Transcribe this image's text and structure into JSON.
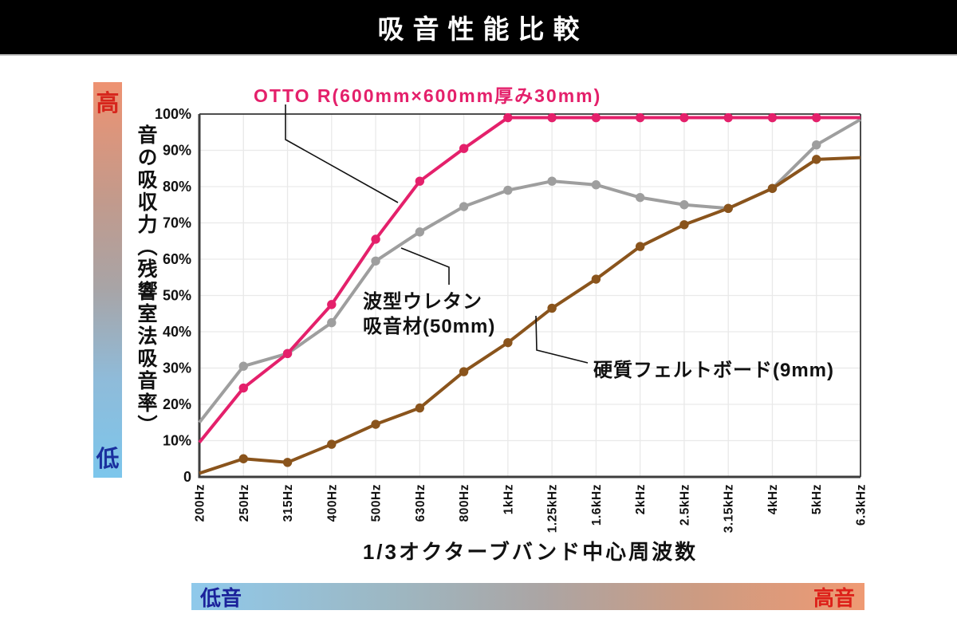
{
  "header": {
    "title": "吸音性能比較"
  },
  "left_scale": {
    "high_label": "高",
    "low_label": "低",
    "top_color": "#EE9271",
    "bottom_color": "#7CC6EC",
    "high_text_color": "#D6251C",
    "low_text_color": "#1A2F9E"
  },
  "bottom_scale": {
    "left_label": "低音",
    "right_label": "高音",
    "left_color": "#8FC9EB",
    "right_color": "#EF9A73",
    "left_text_color": "#1B229B",
    "right_text_color": "#DD2019"
  },
  "annotations": {
    "otto": {
      "label": "OTTO R(600mm×600mm厚み30mm)",
      "color": "#E4206B"
    },
    "urethane": {
      "line1": "波型ウレタン",
      "line2": "吸音材(50mm)",
      "color": "#111111"
    },
    "felt": {
      "label": "硬質フェルトボード(9mm)",
      "color": "#111111"
    }
  },
  "chart_data": {
    "type": "line",
    "title": "吸音性能比較",
    "xlabel": "1/3オクターブバンド中心周波数",
    "ylabel": "音の吸収力（残響室法吸音率）",
    "ylim": [
      0,
      100
    ],
    "grid": true,
    "legend_position": "inline-annotations",
    "y_tick_labels": [
      "100%",
      "90%",
      "80%",
      "70%",
      "60%",
      "50%",
      "40%",
      "30%",
      "20%",
      "10%",
      "0"
    ],
    "categories": [
      "200Hz",
      "250Hz",
      "315Hz",
      "400Hz",
      "500Hz",
      "630Hz",
      "800Hz",
      "1kHz",
      "1.25kHz",
      "1.6kHz",
      "2kHz",
      "2.5kHz",
      "3.15kHz",
      "4kHz",
      "5kHz",
      "6.3kHz"
    ],
    "series": [
      {
        "name": "OTTO R(600mm×600mm厚み30mm)",
        "color": "#E4206B",
        "values": [
          9.5,
          24.5,
          34,
          47.5,
          65.5,
          81.5,
          90.5,
          99,
          99,
          99,
          99,
          99,
          99,
          99,
          99,
          99
        ]
      },
      {
        "name": "波型ウレタン吸音材(50mm)",
        "color": "#9E9E9E",
        "values": [
          15,
          30.5,
          34,
          42.5,
          59.5,
          67.5,
          74.5,
          79,
          81.5,
          80.5,
          77,
          75,
          74,
          79.5,
          91.5,
          98.5
        ]
      },
      {
        "name": "硬質フェルトボード(9mm)",
        "color": "#8A541C",
        "values": [
          1,
          5,
          4,
          9,
          14.5,
          19,
          29,
          37,
          46.5,
          54.5,
          63.5,
          69.5,
          74,
          79.5,
          87.5,
          88
        ]
      }
    ]
  }
}
